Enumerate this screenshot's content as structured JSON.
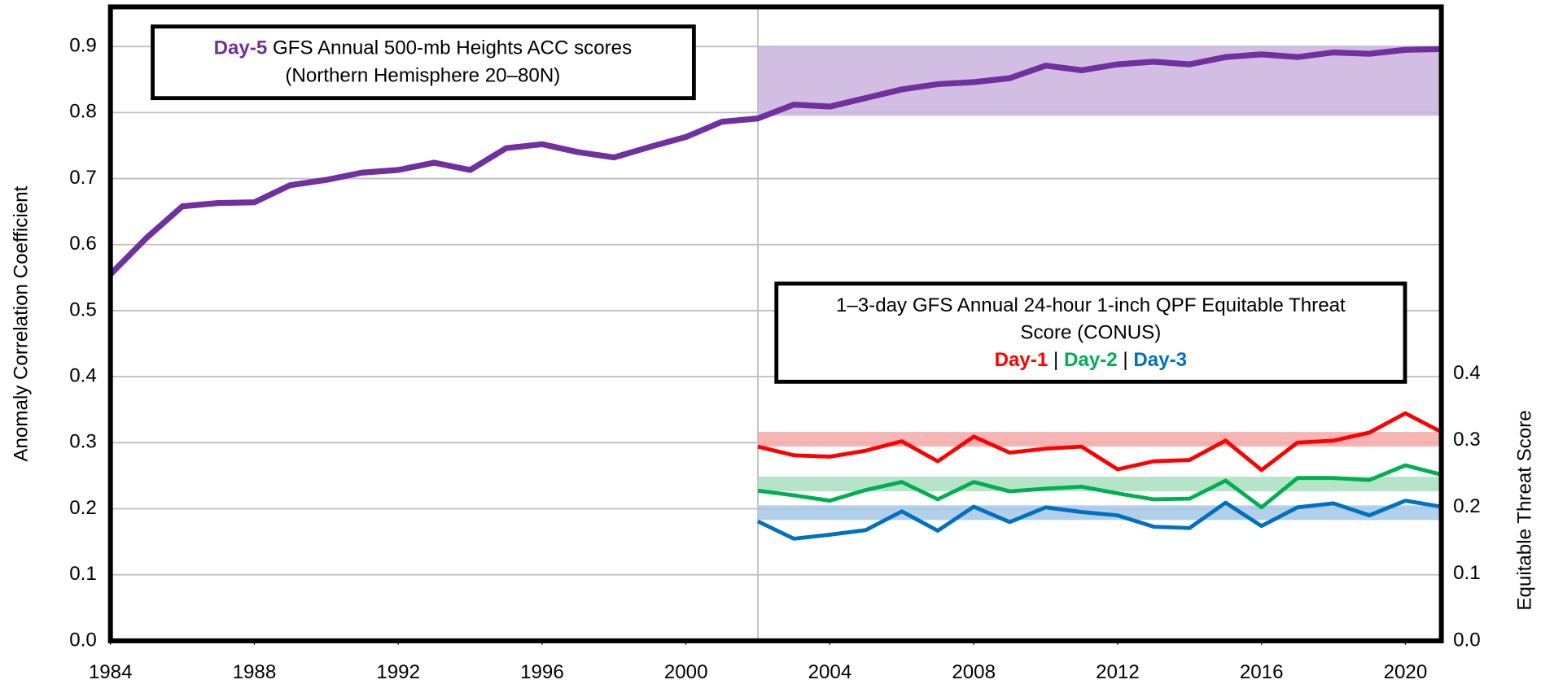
{
  "chart_data": {
    "type": "line",
    "x": [
      1984,
      1985,
      1986,
      1987,
      1988,
      1989,
      1990,
      1991,
      1992,
      1993,
      1994,
      1995,
      1996,
      1997,
      1998,
      1999,
      2000,
      2001,
      2002,
      2003,
      2004,
      2005,
      2006,
      2007,
      2008,
      2009,
      2010,
      2011,
      2012,
      2013,
      2014,
      2015,
      2016,
      2017,
      2018,
      2019,
      2020,
      2021
    ],
    "xlim": [
      1984,
      2021
    ],
    "xticks": [
      1984,
      1988,
      1992,
      1996,
      2000,
      2004,
      2008,
      2012,
      2016,
      2020
    ],
    "ylim": [
      0,
      0.96
    ],
    "yticks": [
      {
        "value": 0,
        "label": "0.0"
      },
      0.1,
      0.2,
      0.3,
      0.4,
      0.5,
      0.6,
      0.7,
      0.8,
      0.9
    ],
    "y2lim": [
      0,
      0.95
    ],
    "y2ticks": [
      {
        "value": 0,
        "label": "0.0"
      },
      0.1,
      0.2,
      0.3,
      0.4
    ],
    "ylabel": "Anomaly Correlation Coefficient",
    "y2label": "Equitable Threat Score",
    "grid": true,
    "vline": 2002,
    "band_x": [
      2002,
      2021
    ],
    "series": [
      {
        "name": "Day-5",
        "color": "#7030a0",
        "band_color": "#c9b3dd",
        "band": [
          0.795,
          0.9
        ],
        "values": [
          0.555,
          0.61,
          0.658,
          0.663,
          0.664,
          0.69,
          0.698,
          0.709,
          0.713,
          0.724,
          0.713,
          0.746,
          0.752,
          0.74,
          0.732,
          0.748,
          0.763,
          0.786,
          0.791,
          0.812,
          0.809,
          0.822,
          0.835,
          0.843,
          0.846,
          0.852,
          0.871,
          0.864,
          0.873,
          0.877,
          0.873,
          0.884,
          0.888,
          0.884,
          0.891,
          0.889,
          0.895,
          0.896
        ]
      },
      {
        "name": "Day-1",
        "color": "#ff0000",
        "band_color": "#f7a8a8",
        "band": [
          0.291,
          0.313
        ],
        "axis": "y2",
        "values": [
          null,
          null,
          null,
          null,
          null,
          null,
          null,
          null,
          null,
          null,
          null,
          null,
          null,
          null,
          null,
          null,
          null,
          null,
          0.291,
          0.278,
          0.276,
          0.285,
          0.299,
          0.269,
          0.306,
          0.282,
          0.288,
          0.291,
          0.257,
          0.269,
          0.271,
          0.3,
          0.256,
          0.297,
          0.3,
          0.312,
          0.341,
          0.313
        ]
      },
      {
        "name": "Day-2",
        "color": "#00b050",
        "band_color": "#a8dfbf",
        "band": [
          0.224,
          0.246
        ],
        "axis": "y2",
        "values": [
          null,
          null,
          null,
          null,
          null,
          null,
          null,
          null,
          null,
          null,
          null,
          null,
          null,
          null,
          null,
          null,
          null,
          null,
          0.225,
          0.218,
          0.21,
          0.226,
          0.238,
          0.212,
          0.238,
          0.224,
          0.228,
          0.231,
          0.221,
          0.212,
          0.213,
          0.24,
          0.2,
          0.244,
          0.244,
          0.241,
          0.263,
          0.249
        ]
      },
      {
        "name": "Day-3",
        "color": "#0070c0",
        "band_color": "#a6c8e6",
        "band": [
          0.181,
          0.203
        ],
        "axis": "y2",
        "values": [
          null,
          null,
          null,
          null,
          null,
          null,
          null,
          null,
          null,
          null,
          null,
          null,
          null,
          null,
          null,
          null,
          null,
          null,
          0.179,
          0.153,
          0.159,
          0.166,
          0.194,
          0.165,
          0.201,
          0.178,
          0.2,
          0.193,
          0.188,
          0.171,
          0.169,
          0.207,
          0.172,
          0.2,
          0.206,
          0.188,
          0.21,
          0.201
        ]
      }
    ],
    "annotations": [
      {
        "text": " GFS Annual 500-mb Heights ACC scores",
        "line2": "(Northern Hemisphere 20–80N)"
      },
      {
        "line1": "1–3-day GFS Annual 24-hour 1-inch QPF Equitable Threat",
        "line2": "Score (CONUS)",
        "separator": " | "
      }
    ]
  }
}
